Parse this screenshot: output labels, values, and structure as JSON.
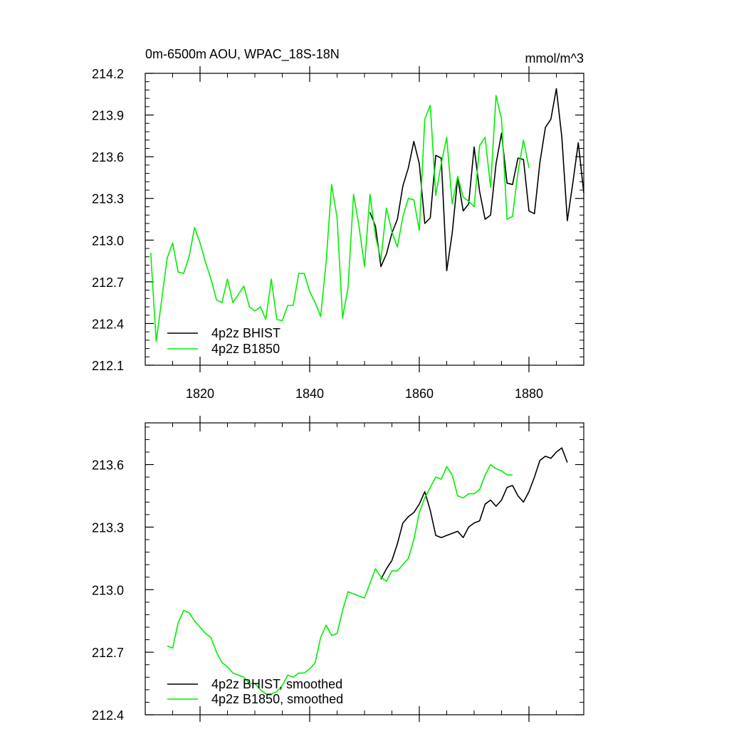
{
  "chart_data": [
    {
      "type": "line",
      "title": "0m-6500m AOU, WPAC_18S-18N",
      "units": "mmol/m^3",
      "xlim": [
        1810,
        1890
      ],
      "ylim": [
        212.1,
        214.2
      ],
      "x_ticks": [
        1820,
        1840,
        1860,
        1880
      ],
      "x_tick_labels": [
        "1820",
        "1840",
        "1860",
        "1880"
      ],
      "y_ticks": [
        212.1,
        212.4,
        212.7,
        213.0,
        213.3,
        213.6,
        213.9,
        214.2
      ],
      "y_tick_labels": [
        "212.1",
        "212.4",
        "212.7",
        "213.0",
        "213.3",
        "213.6",
        "213.9",
        "214.2"
      ],
      "legend_position": "bottom-left",
      "series": [
        {
          "name": "4p2z BHIST",
          "color": "#000000",
          "x": [
            1851,
            1852,
            1853,
            1854,
            1855,
            1856,
            1857,
            1858,
            1859,
            1860,
            1861,
            1862,
            1863,
            1864,
            1865,
            1866,
            1867,
            1868,
            1869,
            1870,
            1871,
            1872,
            1873,
            1874,
            1875,
            1876,
            1877,
            1878,
            1879,
            1880,
            1881,
            1882,
            1883,
            1884,
            1885,
            1886,
            1887,
            1888,
            1889,
            1890
          ],
          "y": [
            213.2,
            213.1,
            212.81,
            212.9,
            213.05,
            213.15,
            213.39,
            213.52,
            213.71,
            213.55,
            213.12,
            213.16,
            213.61,
            213.59,
            212.78,
            213.05,
            213.45,
            213.21,
            213.26,
            213.67,
            213.35,
            213.15,
            213.18,
            213.55,
            213.77,
            213.41,
            213.4,
            213.59,
            213.58,
            213.21,
            213.19,
            213.56,
            213.81,
            213.87,
            214.09,
            213.74,
            213.14,
            213.41,
            213.7,
            213.34
          ]
        },
        {
          "name": "4p2z B1850",
          "color": "#00ee00",
          "x": [
            1811,
            1812,
            1813,
            1814,
            1815,
            1816,
            1817,
            1818,
            1819,
            1820,
            1821,
            1822,
            1823,
            1824,
            1825,
            1826,
            1827,
            1828,
            1829,
            1830,
            1831,
            1832,
            1833,
            1834,
            1835,
            1836,
            1837,
            1838,
            1839,
            1840,
            1841,
            1842,
            1843,
            1844,
            1845,
            1846,
            1847,
            1848,
            1849,
            1850,
            1851,
            1852,
            1853,
            1854,
            1855,
            1856,
            1857,
            1858,
            1859,
            1860,
            1861,
            1862,
            1863,
            1864,
            1865,
            1866,
            1867,
            1868,
            1869,
            1870,
            1871,
            1872,
            1873,
            1874,
            1875,
            1876,
            1877,
            1878,
            1879,
            1880
          ],
          "y": [
            212.91,
            212.27,
            212.57,
            212.87,
            212.98,
            212.77,
            212.76,
            212.88,
            213.09,
            212.98,
            212.84,
            212.72,
            212.57,
            212.55,
            212.72,
            212.55,
            212.61,
            212.67,
            212.52,
            212.49,
            212.52,
            212.43,
            212.72,
            212.43,
            212.42,
            212.53,
            212.53,
            212.76,
            212.76,
            212.63,
            212.55,
            212.45,
            212.84,
            213.4,
            213.16,
            212.44,
            212.66,
            213.33,
            213.1,
            212.81,
            213.33,
            213.03,
            212.86,
            213.23,
            213.06,
            212.95,
            213.17,
            213.3,
            213.29,
            213.07,
            213.87,
            213.97,
            213.32,
            213.55,
            213.74,
            213.26,
            213.46,
            213.31,
            213.28,
            213.24,
            213.68,
            213.74,
            213.38,
            214.04,
            213.87,
            213.15,
            213.17,
            213.49,
            213.72,
            213.52
          ]
        }
      ]
    },
    {
      "type": "line",
      "title": "",
      "xlim": [
        1810,
        1890
      ],
      "ylim": [
        212.4,
        213.8
      ],
      "x_ticks": [
        1820,
        1840,
        1860,
        1880
      ],
      "y_ticks": [
        212.4,
        212.7,
        213.0,
        213.3,
        213.6
      ],
      "y_tick_labels": [
        "212.4",
        "212.7",
        "213.0",
        "213.3",
        "213.6"
      ],
      "legend_position": "bottom-left",
      "series": [
        {
          "name": "4p2z BHIST, smoothed",
          "color": "#000000",
          "x": [
            1853,
            1854,
            1855,
            1856,
            1857,
            1858,
            1859,
            1860,
            1861,
            1862,
            1863,
            1864,
            1865,
            1866,
            1867,
            1868,
            1869,
            1870,
            1871,
            1872,
            1873,
            1874,
            1875,
            1876,
            1877,
            1878,
            1879,
            1880,
            1881,
            1882,
            1883,
            1884,
            1885,
            1886,
            1887
          ],
          "y": [
            213.05,
            213.1,
            213.14,
            213.22,
            213.32,
            213.35,
            213.37,
            213.41,
            213.47,
            213.38,
            213.26,
            213.25,
            213.26,
            213.27,
            213.28,
            213.25,
            213.3,
            213.32,
            213.33,
            213.41,
            213.43,
            213.4,
            213.43,
            213.49,
            213.5,
            213.45,
            213.42,
            213.47,
            213.54,
            213.62,
            213.64,
            213.63,
            213.66,
            213.68,
            213.61
          ]
        },
        {
          "name": "4p2z B1850, smoothed",
          "color": "#00ee00",
          "x": [
            1814,
            1815,
            1816,
            1817,
            1818,
            1819,
            1820,
            1821,
            1822,
            1823,
            1824,
            1825,
            1826,
            1827,
            1828,
            1829,
            1830,
            1831,
            1832,
            1833,
            1834,
            1835,
            1836,
            1837,
            1838,
            1839,
            1840,
            1841,
            1842,
            1843,
            1844,
            1845,
            1846,
            1847,
            1848,
            1849,
            1850,
            1851,
            1852,
            1853,
            1854,
            1855,
            1856,
            1857,
            1858,
            1859,
            1860,
            1861,
            1862,
            1863,
            1864,
            1865,
            1866,
            1867,
            1868,
            1869,
            1870,
            1871,
            1872,
            1873,
            1874,
            1875,
            1876,
            1877
          ],
          "y": [
            212.73,
            212.72,
            212.84,
            212.9,
            212.89,
            212.85,
            212.82,
            212.79,
            212.77,
            212.7,
            212.65,
            212.63,
            212.6,
            212.59,
            212.58,
            212.55,
            212.55,
            212.52,
            212.5,
            212.5,
            212.51,
            212.54,
            212.59,
            212.58,
            212.6,
            212.6,
            212.62,
            212.65,
            212.77,
            212.83,
            212.78,
            212.79,
            212.9,
            212.99,
            212.98,
            212.97,
            212.96,
            213.03,
            213.1,
            213.06,
            213.04,
            213.09,
            213.09,
            213.12,
            213.15,
            213.24,
            213.37,
            213.44,
            213.49,
            213.54,
            213.53,
            213.59,
            213.55,
            213.45,
            213.44,
            213.46,
            213.46,
            213.48,
            213.55,
            213.6,
            213.58,
            213.57,
            213.55,
            213.55
          ]
        }
      ]
    }
  ]
}
